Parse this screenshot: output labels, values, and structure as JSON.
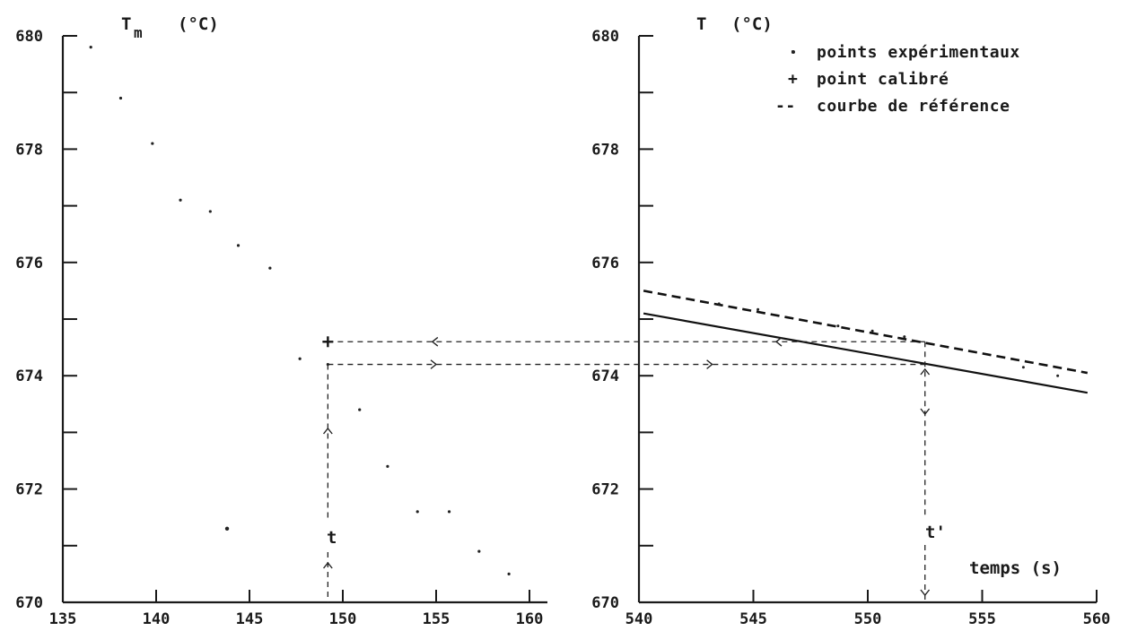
{
  "chart_data": [
    {
      "id": "left",
      "type": "scatter",
      "ylabel": "T",
      "ylabel_sub": "m",
      "ylabel_unit": "(°C)",
      "xlim": [
        135,
        160
      ],
      "ylim": [
        670,
        680
      ],
      "xticks": [
        135,
        140,
        145,
        150,
        155,
        160
      ],
      "yticks": [
        670,
        672,
        674,
        676,
        678,
        680
      ],
      "series": [
        {
          "x": [
            136.5,
            138.1,
            139.8,
            141.3,
            142.9,
            144.4,
            146.1,
            147.7,
            149.2,
            150.9,
            152.4,
            154.0,
            155.7,
            157.3,
            158.9
          ],
          "y": [
            679.8,
            678.9,
            678.1,
            677.1,
            676.9,
            676.3,
            675.9,
            674.3,
            674.2,
            673.4,
            672.4,
            671.6,
            671.6,
            670.9,
            670.5
          ]
        },
        {
          "x": [
            143.8
          ],
          "y": [
            671.3
          ]
        }
      ],
      "calibrated_point": {
        "x": 149.2,
        "y": 674.6
      },
      "marker_label": "t",
      "marker_x": 149.2
    },
    {
      "id": "right",
      "type": "line",
      "ylabel": "T",
      "ylabel_unit": "(°C)",
      "xlabel": "temps (s)",
      "xlim": [
        540,
        560
      ],
      "ylim": [
        670,
        680
      ],
      "xticks": [
        540,
        545,
        550,
        555,
        560
      ],
      "yticks": [
        670,
        672,
        674,
        676,
        678,
        680
      ],
      "series": [
        {
          "style": "dashed",
          "x": [
            540.2,
            559.6
          ],
          "y": [
            675.5,
            674.05
          ]
        },
        {
          "style": "solid",
          "x": [
            540.2,
            559.6
          ],
          "y": [
            675.1,
            673.7
          ]
        },
        {
          "style": "points",
          "x": [
            543.5,
            545.2,
            548.7,
            550.2,
            551.6,
            556.8,
            558.3
          ],
          "y": [
            675.27,
            675.17,
            674.88,
            674.79,
            674.69,
            674.15,
            674.0
          ]
        }
      ],
      "marker_label": "t'",
      "marker_x": 552.5
    }
  ],
  "legend": [
    {
      "symbol": "·",
      "label": "points expérimentaux"
    },
    {
      "symbol": "+",
      "label": "point calibré"
    },
    {
      "symbol": "--",
      "label": "courbe de référence"
    }
  ],
  "arrows": {
    "upper_y": 674.6,
    "lower_y": 674.2
  }
}
